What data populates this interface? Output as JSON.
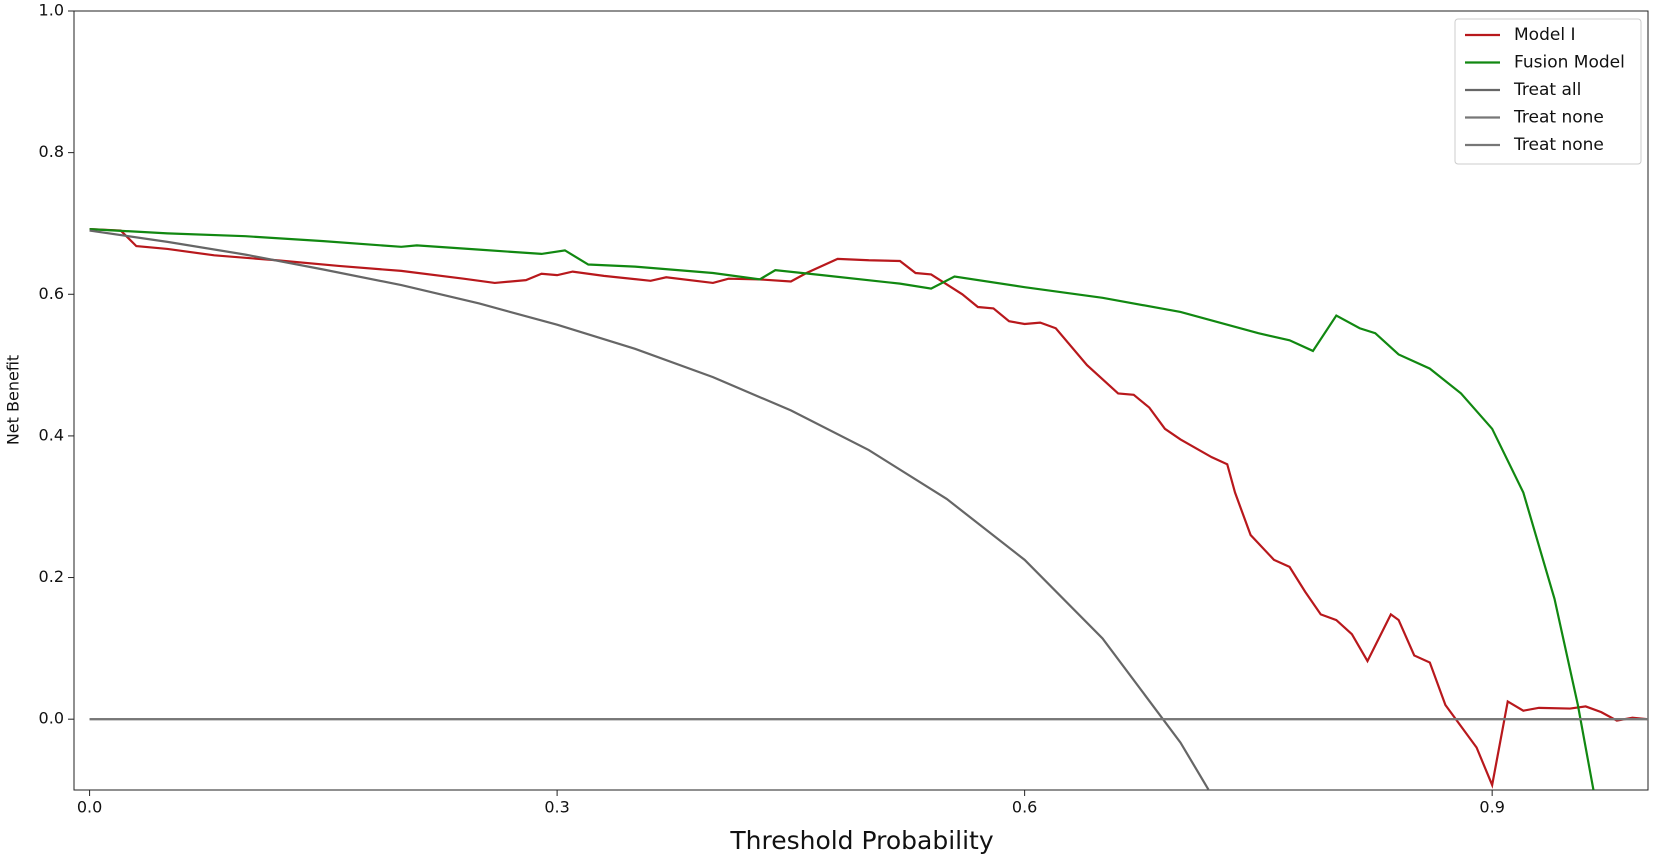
{
  "chart_data": {
    "type": "line",
    "xlabel": "Threshold Probability",
    "ylabel": "Net Benefit",
    "xlim": [
      -0.01,
      1.0
    ],
    "ylim": [
      -0.1,
      1.0
    ],
    "xticks": [
      {
        "value": 0,
        "label": "0.0"
      },
      0.3,
      0.6,
      0.9
    ],
    "yticks": [
      {
        "value": 0,
        "label": "0.0"
      },
      0.2,
      0.4,
      0.6,
      0.8,
      {
        "value": 1,
        "label": "1.0"
      }
    ],
    "legend": "upper right",
    "series": [
      {
        "name": "Model I",
        "color": "#b8181c",
        "x": [
          0,
          0.02,
          0.03,
          0.05,
          0.08,
          0.12,
          0.16,
          0.2,
          0.24,
          0.26,
          0.28,
          0.29,
          0.3,
          0.31,
          0.33,
          0.36,
          0.37,
          0.4,
          0.41,
          0.43,
          0.45,
          0.46,
          0.48,
          0.5,
          0.52,
          0.53,
          0.54,
          0.56,
          0.57,
          0.58,
          0.59,
          0.6,
          0.61,
          0.62,
          0.64,
          0.66,
          0.67,
          0.68,
          0.69,
          0.7,
          0.72,
          0.73,
          0.735,
          0.745,
          0.76,
          0.77,
          0.78,
          0.79,
          0.8,
          0.81,
          0.82,
          0.835,
          0.84,
          0.85,
          0.86,
          0.87,
          0.88,
          0.89,
          0.9,
          0.91,
          0.92,
          0.93,
          0.95,
          0.96,
          0.97,
          0.98,
          0.99,
          1.0
        ],
        "values": [
          0.692,
          0.69,
          0.668,
          0.664,
          0.655,
          0.648,
          0.64,
          0.633,
          0.622,
          0.616,
          0.62,
          0.629,
          0.627,
          0.632,
          0.626,
          0.619,
          0.624,
          0.616,
          0.622,
          0.621,
          0.618,
          0.63,
          0.65,
          0.648,
          0.647,
          0.63,
          0.628,
          0.6,
          0.582,
          0.58,
          0.562,
          0.558,
          0.56,
          0.552,
          0.5,
          0.46,
          0.458,
          0.44,
          0.41,
          0.395,
          0.37,
          0.36,
          0.32,
          0.26,
          0.225,
          0.215,
          0.18,
          0.148,
          0.14,
          0.12,
          0.082,
          0.148,
          0.14,
          0.09,
          0.08,
          0.02,
          -0.01,
          -0.04,
          -0.093,
          0.025,
          0.012,
          0.016,
          0.015,
          0.018,
          0.01,
          -0.002,
          0.002,
          0
        ]
      },
      {
        "name": "Fusion Model",
        "color": "#118811",
        "x": [
          0,
          0.05,
          0.1,
          0.15,
          0.2,
          0.21,
          0.25,
          0.29,
          0.305,
          0.32,
          0.35,
          0.4,
          0.43,
          0.44,
          0.47,
          0.52,
          0.54,
          0.555,
          0.6,
          0.65,
          0.7,
          0.75,
          0.77,
          0.785,
          0.8,
          0.815,
          0.825,
          0.84,
          0.86,
          0.88,
          0.9,
          0.92,
          0.94,
          0.955,
          0.965
        ],
        "values": [
          0.692,
          0.686,
          0.682,
          0.675,
          0.667,
          0.669,
          0.663,
          0.657,
          0.662,
          0.642,
          0.639,
          0.63,
          0.621,
          0.634,
          0.627,
          0.615,
          0.608,
          0.625,
          0.61,
          0.595,
          0.575,
          0.545,
          0.535,
          0.52,
          0.57,
          0.552,
          0.545,
          0.515,
          0.495,
          0.46,
          0.41,
          0.32,
          0.17,
          0.02,
          -0.1
        ]
      },
      {
        "name": "Treat all",
        "color": "#666666",
        "x": [
          0,
          0.05,
          0.1,
          0.15,
          0.2,
          0.25,
          0.3,
          0.35,
          0.4,
          0.45,
          0.5,
          0.55,
          0.6,
          0.65,
          0.7,
          0.72
        ],
        "values": [
          0.69,
          0.674,
          0.656,
          0.635,
          0.613,
          0.587,
          0.557,
          0.523,
          0.483,
          0.436,
          0.38,
          0.311,
          0.225,
          0.114,
          -0.033,
          -0.107
        ]
      },
      {
        "name": "Treat none",
        "color": "#777777",
        "x": [
          0,
          1.0
        ],
        "values": [
          0,
          0
        ]
      },
      {
        "name": "Treat none",
        "color": "#777777",
        "x": [
          0,
          1.0
        ],
        "values": [
          0,
          0
        ]
      }
    ]
  }
}
